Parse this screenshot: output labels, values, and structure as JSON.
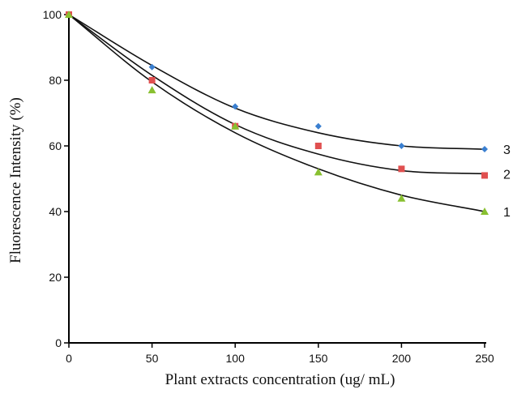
{
  "chart_data": {
    "type": "scatter",
    "title": "",
    "xlabel": "Plant extracts concentration (ug/ mL)",
    "ylabel": "Fluorescence Intensity (%)",
    "xlim": [
      0,
      250
    ],
    "ylim": [
      0,
      100
    ],
    "x_ticks": [
      0,
      50,
      100,
      150,
      200,
      250
    ],
    "y_ticks": [
      0,
      20,
      40,
      60,
      80,
      100
    ],
    "grid": false,
    "legend": "none",
    "series": [
      {
        "name": "3",
        "marker": "diamond",
        "color": "#3a7fd0",
        "x": [
          0,
          50,
          100,
          150,
          200,
          250
        ],
        "values": [
          100,
          84,
          72,
          66,
          60,
          59
        ],
        "fit": [
          100,
          84.5,
          71.5,
          64,
          60,
          59
        ]
      },
      {
        "name": "2",
        "marker": "square",
        "color": "#e05050",
        "x": [
          0,
          50,
          100,
          150,
          200,
          250
        ],
        "values": [
          100,
          80,
          66,
          60,
          53,
          51
        ],
        "fit": [
          100,
          81.5,
          66.5,
          57.5,
          52.5,
          51.5
        ]
      },
      {
        "name": "1",
        "marker": "triangle",
        "color": "#88c030",
        "x": [
          0,
          50,
          100,
          150,
          200,
          250
        ],
        "values": [
          100,
          77,
          66,
          52,
          44,
          40
        ],
        "fit": [
          100,
          79.5,
          64,
          53,
          45,
          40
        ]
      }
    ]
  }
}
